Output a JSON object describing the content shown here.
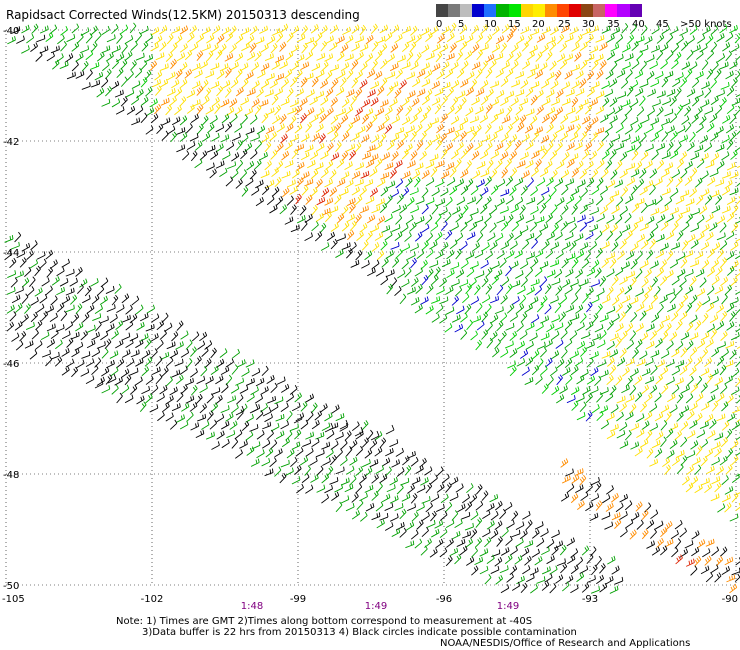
{
  "title": "Rapidsact Corrected Winds(12.5KM) 20150313 descending",
  "legend": {
    "colors": [
      "#454545",
      "#7a7a7a",
      "#bdbdbd",
      "#0000cd",
      "#1e6fff",
      "#00b400",
      "#00e600",
      "#ffd500",
      "#ffee00",
      "#ff8c00",
      "#ff4500",
      "#e00000",
      "#8b4513",
      "#c86464",
      "#ff00ff",
      "#b400ff",
      "#6400b4"
    ],
    "labels": [
      "0",
      "5",
      "10",
      "15",
      "20",
      "25",
      "30",
      "35",
      "40",
      "45",
      ">50 knots"
    ]
  },
  "axes": {
    "lon_ticks": [
      "-105",
      "-102",
      "-99",
      "-96",
      "-93",
      "-90"
    ],
    "lat_ticks": [
      "-40",
      "-42",
      "-44",
      "-46",
      "-48",
      "-50"
    ],
    "lon_range": [
      -105,
      -90
    ],
    "lat_range": [
      -40,
      -50
    ]
  },
  "times": [
    "1:48",
    "1:49",
    "1:49"
  ],
  "notes": {
    "line1": "Note: 1) Times are GMT 2)Times along bottom correspond to measurement at -40S",
    "line2": "3)Data buffer is 22 hrs from 20150313 4) Black circles indicate possible contamination"
  },
  "footer": "NOAA/NESDIS/Office of Research and Applications",
  "wind_colors": {
    "black": "#000000",
    "blue": "#0000cd",
    "green": "#00a000",
    "lime": "#00cc00",
    "yellow": "#ffe000",
    "orange": "#ff8c00",
    "red": "#dd2200"
  }
}
